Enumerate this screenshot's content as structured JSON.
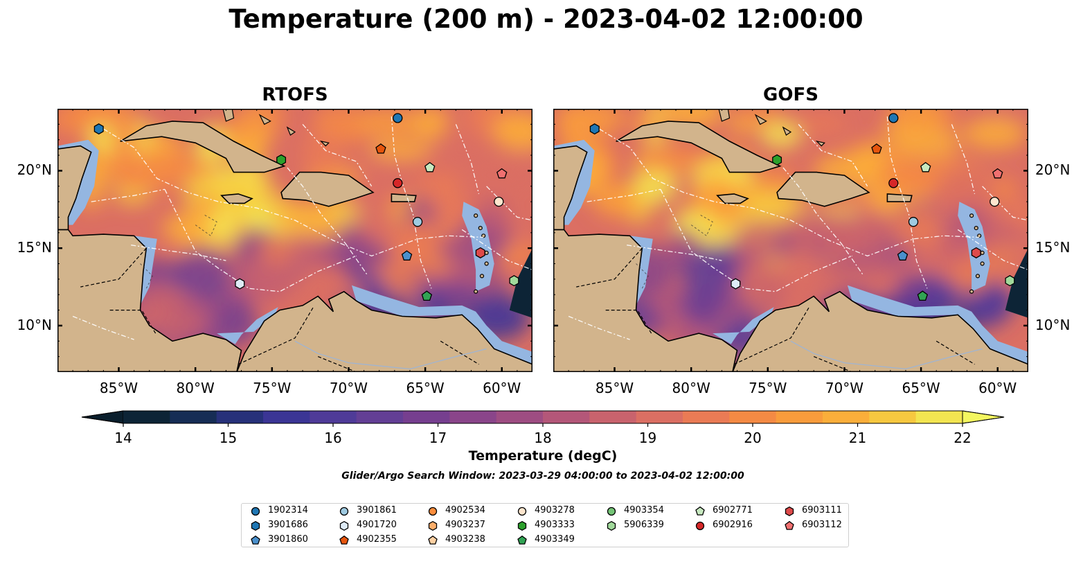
{
  "title": "Temperature (200 m) - 2023-04-02 12:00:00",
  "panels": [
    {
      "title": "RTOFS"
    },
    {
      "title": "GOFS"
    }
  ],
  "axes": {
    "x_ticks": [
      "85°W",
      "80°W",
      "75°W",
      "70°W",
      "65°W",
      "60°W"
    ],
    "x_values": [
      -85,
      -80,
      -75,
      -70,
      -65,
      -60
    ],
    "y_ticks": [
      "20°N",
      "15°N",
      "10°N"
    ],
    "y_values": [
      20,
      15,
      10
    ],
    "lon_range": [
      -89,
      -58
    ],
    "lat_range": [
      7,
      24
    ]
  },
  "colorbar": {
    "label": "Temperature (degC)",
    "ticks": [
      "14",
      "15",
      "16",
      "17",
      "18",
      "19",
      "20",
      "21",
      "22"
    ],
    "min": 14,
    "max": 22,
    "colors": [
      "#0d2436",
      "#162d55",
      "#27317a",
      "#3b3595",
      "#4f3b98",
      "#633f95",
      "#763f8f",
      "#8a458a",
      "#9e4d82",
      "#b45779",
      "#c9636d",
      "#db6f63",
      "#ea7b55",
      "#f48a44",
      "#f99c3c",
      "#fbae3a",
      "#f7c840",
      "#f3e551"
    ],
    "extend_low_color": "#0a1e2c",
    "extend_high_color": "#f4f760"
  },
  "search_window": "Glider/Argo Search Window: 2023-03-29 04:00:00 to 2023-04-02 12:00:00",
  "legend": [
    [
      {
        "id": "1902314",
        "marker": "circle",
        "color": "#1f77b4"
      },
      {
        "id": "3901686",
        "marker": "hexagon",
        "color": "#1f77b4"
      },
      {
        "id": "3901860",
        "marker": "pentagon",
        "color": "#4a90cc"
      }
    ],
    [
      {
        "id": "3901861",
        "marker": "circle",
        "color": "#9ecae1"
      },
      {
        "id": "4901720",
        "marker": "hexagon",
        "color": "#deebf7"
      }
    ],
    [
      {
        "id": "4902534",
        "marker": "circle",
        "color": "#fd8d3c"
      },
      {
        "id": "4903237",
        "marker": "hexagon",
        "color": "#fdae6b"
      },
      {
        "id": "4903238",
        "marker": "pentagon",
        "color": "#fdd0a2"
      }
    ],
    [
      {
        "id": "4903278",
        "marker": "circle",
        "color": "#fee6ce"
      },
      {
        "id": "4903333",
        "marker": "hexagon",
        "color": "#2ca02c"
      },
      {
        "id": "4903349",
        "marker": "pentagon",
        "color": "#31a354"
      }
    ],
    [
      {
        "id": "4903354",
        "marker": "circle",
        "color": "#74c476"
      },
      {
        "id": "5906339",
        "marker": "hexagon",
        "color": "#a1d99b"
      }
    ],
    [
      {
        "id": "6902771",
        "marker": "pentagon",
        "color": "#c7e9c0"
      },
      {
        "id": "6902916",
        "marker": "circle",
        "color": "#d62728"
      }
    ],
    [
      {
        "id": "6903111",
        "marker": "hexagon",
        "color": "#de4a4a"
      },
      {
        "id": "6903112",
        "marker": "pentagon",
        "color": "#f07070"
      }
    ]
  ],
  "legend_col2_ids": [
    "4902355"
  ],
  "legend_col2_colors": [
    "#e6550d"
  ],
  "floats": [
    {
      "id": "1902314",
      "lon": -66.8,
      "lat": 23.4
    },
    {
      "id": "3901686",
      "lon": -86.3,
      "lat": 22.7
    },
    {
      "id": "4902355",
      "lon": -67.9,
      "lat": 21.4
    },
    {
      "id": "4903333",
      "lon": -74.4,
      "lat": 20.7
    },
    {
      "id": "6902771",
      "lon": -64.7,
      "lat": 20.2
    },
    {
      "id": "6903112",
      "lon": -60.0,
      "lat": 19.8
    },
    {
      "id": "6902916",
      "lon": -66.8,
      "lat": 19.2
    },
    {
      "id": "4903278",
      "lon": -60.2,
      "lat": 18.0
    },
    {
      "id": "3901861",
      "lon": -65.5,
      "lat": 16.7
    },
    {
      "id": "6903111",
      "lon": -61.4,
      "lat": 14.7
    },
    {
      "id": "3901860",
      "lon": -66.2,
      "lat": 14.5
    },
    {
      "id": "5906339",
      "lon": -59.2,
      "lat": 12.9
    },
    {
      "id": "4901720",
      "lon": -77.1,
      "lat": 12.7
    },
    {
      "id": "4903349",
      "lon": -64.9,
      "lat": 11.9
    }
  ]
}
